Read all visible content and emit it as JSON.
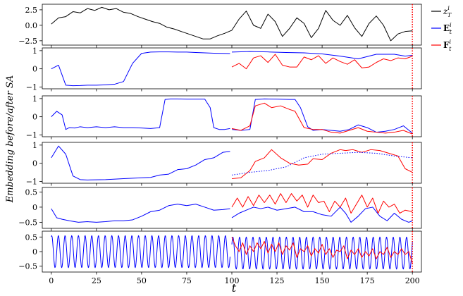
{
  "chart_data": {
    "type": "line",
    "xlabel": "t",
    "ylabel": "Embedding before/after SA",
    "xlim": [
      -5,
      205
    ],
    "x_ticks": [
      "0",
      "25",
      "50",
      "75",
      "100",
      "125",
      "150",
      "175",
      "200"
    ],
    "vline": {
      "x": 200,
      "color": "#ff0000",
      "style": "dotted"
    },
    "legend": {
      "placement": "right",
      "entries": [
        {
          "label": "z_T^i",
          "color": "#000000"
        },
        {
          "label": "E_t^i",
          "color": "#0000ff"
        },
        {
          "label": "F_t^i",
          "color": "#ff0000"
        }
      ]
    },
    "panels": [
      {
        "ylim": [
          -3.2,
          3.4
        ],
        "y_ticks": [
          "2.5",
          "0.0",
          "-2.5"
        ],
        "series": [
          {
            "color": "#000000",
            "style": "solid",
            "x": [
              0,
              4,
              8,
              12,
              16,
              20,
              24,
              28,
              32,
              36,
              40,
              44,
              48,
              52,
              56,
              60,
              64,
              68,
              72,
              76,
              80,
              84,
              88,
              92,
              96,
              100,
              104,
              108,
              112,
              116,
              120,
              124,
              128,
              132,
              136,
              140,
              144,
              148,
              152,
              156,
              160,
              164,
              168,
              172,
              176,
              180,
              184,
              188,
              192,
              196,
              200
            ],
            "y": [
              0.2,
              1.2,
              1.4,
              2.2,
              2.0,
              2.7,
              2.4,
              2.9,
              2.5,
              2.7,
              2.1,
              1.9,
              1.4,
              1.0,
              0.6,
              0.3,
              -0.3,
              -0.6,
              -1.0,
              -1.4,
              -1.8,
              -2.2,
              -2.2,
              -1.7,
              -1.3,
              -0.8,
              1.0,
              2.3,
              0.0,
              -0.5,
              1.8,
              0.6,
              -1.8,
              -0.5,
              1.2,
              0.3,
              -2.0,
              -0.5,
              2.4,
              0.8,
              0.0,
              1.6,
              -0.4,
              -1.8,
              0.3,
              1.5,
              0.0,
              -2.5,
              -1.4,
              -1.0,
              -0.9
            ]
          }
        ]
      },
      {
        "ylim": [
          -1.1,
          1.15
        ],
        "y_ticks": [
          "1",
          "0",
          "-1"
        ],
        "series": [
          {
            "color": "#0000ff",
            "style": "solid",
            "x": [
              0,
              4,
              8,
              12,
              16,
              20,
              25,
              30,
              35,
              40,
              45,
              50,
              55,
              60,
              65,
              70,
              75,
              80,
              85,
              90,
              95,
              99
            ],
            "y": [
              0.0,
              0.2,
              -0.9,
              -0.93,
              -0.92,
              -0.9,
              -0.9,
              -0.88,
              -0.85,
              -0.7,
              0.3,
              0.85,
              0.92,
              0.93,
              0.93,
              0.92,
              0.92,
              0.9,
              0.88,
              0.86,
              0.85,
              0.84
            ]
          },
          {
            "color": "#0000ff",
            "style": "solid",
            "x": [
              100,
              110,
              120,
              130,
              140,
              150,
              160,
              170,
              180,
              190,
              196,
              200
            ],
            "y": [
              0.92,
              0.95,
              0.93,
              0.9,
              0.88,
              0.82,
              0.7,
              0.55,
              0.8,
              0.8,
              0.7,
              0.75
            ]
          },
          {
            "color": "#ff0000",
            "style": "solid",
            "x": [
              100,
              104,
              108,
              112,
              116,
              120,
              124,
              128,
              132,
              136,
              140,
              144,
              148,
              152,
              156,
              160,
              164,
              168,
              172,
              176,
              180,
              184,
              188,
              192,
              196,
              200
            ],
            "y": [
              0.1,
              0.3,
              0.0,
              0.6,
              0.72,
              0.35,
              0.8,
              0.2,
              0.1,
              0.1,
              0.65,
              0.5,
              0.72,
              0.3,
              0.6,
              0.4,
              0.25,
              0.5,
              0.05,
              0.1,
              0.35,
              0.55,
              0.45,
              0.6,
              0.55,
              0.7
            ]
          }
        ]
      },
      {
        "ylim": [
          -1.1,
          1.15
        ],
        "y_ticks": [
          "1",
          "0",
          "-1"
        ],
        "series": [
          {
            "color": "#0000ff",
            "style": "solid",
            "x": [
              0,
              3,
              6,
              8,
              10,
              13,
              16,
              20,
              25,
              30,
              35,
              40,
              45,
              50,
              55,
              60,
              63,
              66,
              70,
              75,
              80,
              85,
              88,
              90,
              93,
              96,
              99
            ],
            "y": [
              0.0,
              0.3,
              0.1,
              -0.7,
              -0.6,
              -0.62,
              -0.55,
              -0.6,
              -0.55,
              -0.6,
              -0.55,
              -0.6,
              -0.6,
              -0.62,
              -0.65,
              -0.6,
              0.95,
              0.98,
              0.98,
              0.97,
              0.97,
              0.97,
              0.5,
              -0.6,
              -0.7,
              -0.7,
              -0.65
            ]
          },
          {
            "color": "#0000ff",
            "style": "solid",
            "x": [
              100,
              105,
              110,
              113,
              118,
              125,
              132,
              135,
              138,
              142,
              145,
              150,
              155,
              160,
              165,
              170,
              175,
              180,
              185,
              190,
              195,
              200
            ],
            "y": [
              -0.7,
              -0.75,
              -0.7,
              0.95,
              0.98,
              0.97,
              0.95,
              0.95,
              0.5,
              -0.55,
              -0.75,
              -0.7,
              -0.75,
              -0.8,
              -0.7,
              -0.45,
              -0.6,
              -0.85,
              -0.8,
              -0.7,
              -0.5,
              -0.9
            ]
          },
          {
            "color": "#ff0000",
            "style": "solid",
            "x": [
              100,
              105,
              110,
              113,
              118,
              122,
              127,
              132,
              135,
              140,
              145,
              150,
              155,
              160,
              165,
              170,
              175,
              180,
              185,
              190,
              195,
              200
            ],
            "y": [
              -0.65,
              -0.75,
              -0.5,
              0.6,
              0.75,
              0.5,
              0.6,
              0.4,
              0.3,
              -0.6,
              -0.7,
              -0.7,
              -0.85,
              -0.9,
              -0.75,
              -0.6,
              -0.8,
              -0.85,
              -0.9,
              -0.85,
              -0.75,
              -0.95
            ]
          }
        ]
      },
      {
        "ylim": [
          -1.1,
          1.15
        ],
        "y_ticks": [
          "1",
          "0",
          "-1"
        ],
        "series": [
          {
            "color": "#0000ff",
            "style": "solid",
            "x": [
              0,
              4,
              8,
              12,
              16,
              20,
              30,
              40,
              50,
              55,
              60,
              65,
              70,
              75,
              80,
              85,
              90,
              95,
              99
            ],
            "y": [
              0.3,
              0.95,
              0.5,
              -0.7,
              -0.9,
              -0.92,
              -0.9,
              -0.85,
              -0.8,
              -0.78,
              -0.65,
              -0.6,
              -0.35,
              -0.3,
              -0.1,
              0.2,
              0.3,
              0.6,
              0.65
            ]
          },
          {
            "color": "#ff0000",
            "style": "solid",
            "x": [
              100,
              105,
              110,
              113,
              118,
              122,
              127,
              132,
              137,
              142,
              145,
              150,
              155,
              160,
              163,
              167,
              172,
              177,
              182,
              187,
              192,
              196,
              200
            ],
            "y": [
              -0.85,
              -0.8,
              -0.4,
              0.1,
              0.3,
              0.75,
              0.3,
              0.0,
              -0.1,
              -0.05,
              0.25,
              0.2,
              0.55,
              0.75,
              0.7,
              0.75,
              0.6,
              0.75,
              0.7,
              0.55,
              0.4,
              -0.3,
              -0.5
            ]
          },
          {
            "color": "#0000ff",
            "style": "dotted",
            "x": [
              100,
              110,
              120,
              130,
              140,
              150,
              160,
              170,
              180,
              190,
              200
            ],
            "y": [
              -0.65,
              -0.5,
              -0.4,
              -0.2,
              0.3,
              0.5,
              0.55,
              0.6,
              0.55,
              0.4,
              0.3
            ]
          }
        ]
      },
      {
        "ylim": [
          -0.7,
          0.65
        ],
        "y_ticks": [
          "0.5",
          "0",
          "-0.5"
        ],
        "series": [
          {
            "color": "#0000ff",
            "style": "solid",
            "x": [
              0,
              3,
              6,
              10,
              15,
              20,
              25,
              30,
              35,
              40,
              45,
              50,
              55,
              60,
              65,
              70,
              75,
              80,
              85,
              90,
              95,
              99
            ],
            "y": [
              -0.05,
              -0.35,
              -0.4,
              -0.45,
              -0.5,
              -0.48,
              -0.5,
              -0.48,
              -0.45,
              -0.45,
              -0.42,
              -0.3,
              -0.15,
              -0.1,
              0.05,
              0.1,
              0.05,
              0.1,
              0.0,
              -0.1,
              -0.08,
              -0.05
            ]
          },
          {
            "color": "#0000ff",
            "style": "solid",
            "x": [
              100,
              104,
              108,
              112,
              116,
              120,
              125,
              130,
              135,
              140,
              145,
              150,
              155,
              160,
              163,
              166,
              170,
              174,
              178,
              182,
              186,
              190,
              194,
              198,
              200
            ],
            "y": [
              -0.35,
              -0.2,
              -0.1,
              0.0,
              -0.05,
              0.0,
              -0.1,
              -0.05,
              0.0,
              -0.15,
              -0.15,
              -0.25,
              -0.3,
              0.0,
              -0.2,
              -0.5,
              -0.3,
              -0.05,
              0.0,
              -0.3,
              -0.45,
              -0.2,
              -0.4,
              -0.5,
              -0.45
            ]
          },
          {
            "color": "#ff0000",
            "style": "solid",
            "x": [
              100,
              103,
              106,
              109,
              112,
              115,
              118,
              121,
              124,
              127,
              130,
              133,
              136,
              139,
              142,
              145,
              148,
              151,
              154,
              157,
              160,
              163,
              166,
              169,
              172,
              175,
              178,
              181,
              184,
              187,
              190,
              193,
              196,
              200
            ],
            "y": [
              0.0,
              0.3,
              0.0,
              0.35,
              0.05,
              0.4,
              0.15,
              0.4,
              0.1,
              0.45,
              0.15,
              0.45,
              0.2,
              0.4,
              0.0,
              0.4,
              0.15,
              0.2,
              -0.15,
              0.2,
              0.0,
              0.3,
              -0.2,
              0.1,
              0.4,
              0.0,
              0.3,
              -0.2,
              0.2,
              0.0,
              0.1,
              -0.2,
              -0.1,
              -0.15
            ]
          }
        ]
      },
      {
        "ylim": [
          -0.7,
          0.7
        ],
        "y_ticks": [
          "0.5",
          "0",
          "-0.5"
        ],
        "series": [
          {
            "color": "#0000ff",
            "style": "solid",
            "kind": "sine",
            "x0": 0,
            "x1": 99,
            "period": 3.7,
            "amplitude": 0.55,
            "offset": 0.0,
            "phase": 1.2
          },
          {
            "color": "#0000ff",
            "style": "solid",
            "kind": "sine",
            "x0": 100,
            "x1": 200,
            "period": 3.7,
            "amplitude": 0.55,
            "offset": -0.05,
            "phase": 0.4
          },
          {
            "color": "#ff0000",
            "style": "solid",
            "x": [
              100,
              102,
              104,
              106,
              108,
              110,
              112,
              114,
              116,
              118,
              120,
              122,
              124,
              126,
              128,
              130,
              132,
              134,
              136,
              138,
              140,
              142,
              144,
              146,
              148,
              150,
              152,
              154,
              156,
              158,
              160,
              162,
              164,
              166,
              168,
              170,
              172,
              174,
              176,
              178,
              180,
              182,
              184,
              186,
              188,
              190,
              192,
              194,
              196,
              198,
              200
            ],
            "y": [
              0.5,
              0.2,
              0.0,
              0.3,
              -0.1,
              0.2,
              0.0,
              0.3,
              0.1,
              0.35,
              -0.05,
              0.25,
              0.0,
              0.3,
              -0.1,
              0.2,
              0.05,
              0.3,
              -0.2,
              0.1,
              0.0,
              0.2,
              -0.15,
              0.1,
              -0.05,
              0.25,
              -0.1,
              0.1,
              -0.2,
              0.05,
              0.0,
              0.2,
              -0.25,
              0.05,
              -0.1,
              0.1,
              -0.2,
              0.0,
              -0.15,
              0.1,
              -0.25,
              0.0,
              -0.1,
              0.15,
              -0.2,
              0.0,
              -0.1,
              0.1,
              -0.1,
              0.0,
              -0.4
            ]
          }
        ]
      }
    ]
  }
}
